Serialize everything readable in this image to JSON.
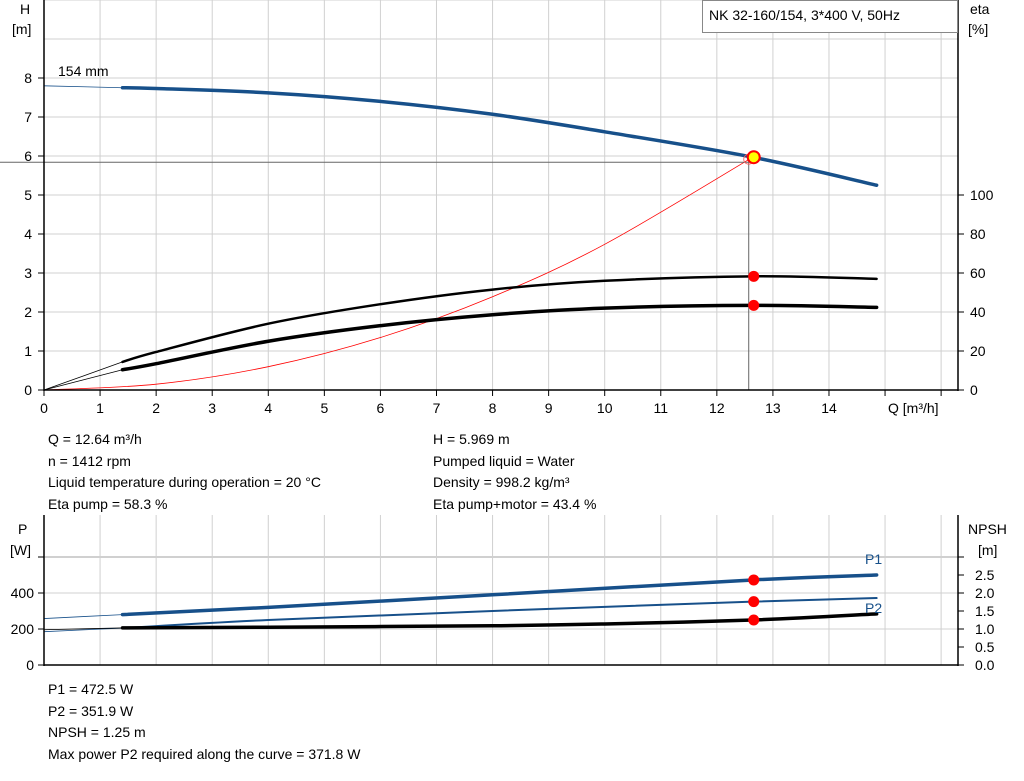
{
  "title_box": "NK 32-160/154, 3*400 V, 50Hz",
  "colors": {
    "pump_curve": "#17508a",
    "system_curve": "#ff0000",
    "eta_curves": "#000000",
    "duty_point": "#ff0000",
    "duty_fill": "#ffff00",
    "grid": "#d0d0d0"
  },
  "chart_data": [
    {
      "type": "line",
      "xlabel": "Q [m³/h]",
      "ylabel_left": [
        "H",
        "[m]"
      ],
      "ylabel_right": [
        "eta",
        "[%]"
      ],
      "xlim": [
        0,
        16
      ],
      "ylim_left": [
        0,
        10
      ],
      "ylim_right": [
        0,
        200
      ],
      "x_ticks": [
        "0",
        "1",
        "2",
        "3",
        "4",
        "5",
        "6",
        "7",
        "8",
        "9",
        "10",
        "11",
        "12",
        "13",
        "14"
      ],
      "y_ticks_left": [
        "0",
        "1",
        "2",
        "3",
        "4",
        "5",
        "6",
        "7",
        "8"
      ],
      "y_ticks_right": [
        "0",
        "20",
        "40",
        "60",
        "80",
        "100"
      ],
      "grid": true,
      "curve_label": "154 mm",
      "duty_point": {
        "Q": 12.64,
        "H": 5.969,
        "eta_pump": 58.3,
        "eta_pump_motor": 43.4
      },
      "series": [
        {
          "key": "H",
          "axis": "left",
          "x": [
            1.4,
            2,
            4,
            6,
            8,
            10,
            12.64,
            14.85
          ],
          "y": [
            7.75,
            7.73,
            7.62,
            7.4,
            7.07,
            6.62,
            5.969,
            5.25
          ],
          "ext_x": [
            0,
            1.4
          ],
          "ext_y": [
            7.8,
            7.75
          ]
        },
        {
          "key": "eta_pump",
          "axis": "right",
          "x": [
            1.4,
            2,
            4,
            6,
            8,
            10,
            12.64,
            14.85
          ],
          "y": [
            14.4,
            19.5,
            34,
            44,
            51.5,
            56,
            58.3,
            57
          ],
          "ext_x": [
            0,
            1.4
          ],
          "ext_y": [
            0,
            14.4
          ]
        },
        {
          "key": "eta_pump_motor",
          "axis": "right",
          "x": [
            1.4,
            2,
            4,
            6,
            8,
            10,
            12.64,
            14.85
          ],
          "y": [
            10.4,
            13.5,
            25,
            33,
            38.6,
            42,
            43.4,
            42.4
          ],
          "ext_x": [
            0,
            1.4
          ],
          "ext_y": [
            0,
            10.4
          ]
        },
        {
          "key": "system",
          "axis": "left",
          "x": [
            0,
            2,
            4,
            6,
            8,
            10,
            12.64
          ],
          "y": [
            0,
            0.149,
            0.598,
            1.345,
            2.391,
            3.736,
            5.969
          ]
        }
      ]
    },
    {
      "type": "line",
      "ylabel_left": [
        "P",
        "[W]"
      ],
      "ylabel_right": [
        "NPSH",
        "[m]"
      ],
      "xlim": [
        0,
        16
      ],
      "ylim_left": [
        0,
        800
      ],
      "ylim_right": [
        0,
        4
      ],
      "y_ticks_left": [
        "0",
        "200",
        "400"
      ],
      "y_ticks_right": [
        "0.0",
        "0.5",
        "1.0",
        "1.5",
        "2.0",
        "2.5"
      ],
      "grid": true,
      "duty_point": {
        "Q": 12.64,
        "P1": 472.5,
        "P2": 351.9,
        "NPSH": 1.25
      },
      "series": [
        {
          "key": "P1",
          "name": "P1",
          "axis": "left",
          "x": [
            1.4,
            4,
            8,
            12.64,
            14.85
          ],
          "y": [
            280,
            320,
            390,
            472.5,
            500
          ],
          "ext_x": [
            0,
            1.4
          ],
          "ext_y": [
            258,
            280
          ]
        },
        {
          "key": "P2",
          "name": "P2",
          "axis": "left",
          "x": [
            1.4,
            4,
            8,
            12.64,
            14.85
          ],
          "y": [
            205,
            250,
            300,
            351.9,
            372
          ],
          "ext_x": [
            0,
            1.4
          ],
          "ext_y": [
            185,
            205
          ]
        },
        {
          "key": "NPSH",
          "axis": "right",
          "x": [
            1.4,
            4,
            8,
            10,
            12.64,
            14.85
          ],
          "y": [
            1.03,
            1.05,
            1.09,
            1.14,
            1.25,
            1.42
          ],
          "ext_x": [
            0,
            1.4
          ],
          "ext_y": [
            0.98,
            1.03
          ]
        }
      ]
    }
  ],
  "info_top_left": [
    "Q = 12.64 m³/h",
    "n = 1412 rpm",
    "Liquid temperature during operation = 20 °C",
    "Eta pump = 58.3 %"
  ],
  "info_top_right": [
    "H = 5.969 m",
    "Pumped liquid = Water",
    "Density = 998.2 kg/m³",
    "Eta pump+motor = 43.4 %"
  ],
  "info_bottom": [
    "P1 = 472.5 W",
    "P2 = 351.9 W",
    "NPSH = 1.25 m",
    "Max power P2 required along the curve = 371.8 W"
  ]
}
